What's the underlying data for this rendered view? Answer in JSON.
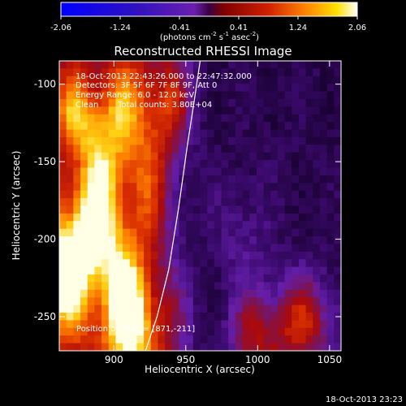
{
  "chart_data": {
    "type": "heatmap",
    "title": "Reconstructed RHESSI Image",
    "xlabel": "Heliocentric X (arcsec)",
    "ylabel": "Heliocentric Y (arcsec)",
    "xlim": [
      862,
      1058
    ],
    "ylim": [
      -272,
      -85
    ],
    "xticks": [
      900,
      950,
      1000,
      1050
    ],
    "yticks": [
      -100,
      -150,
      -200,
      -250
    ],
    "colorbar": {
      "min": -2.06,
      "max": 2.06,
      "ticks": [
        "-2.06",
        "-1.24",
        "-0.41",
        "0.41",
        "1.24",
        "2.06"
      ],
      "unit_main": "(photons cm",
      "unit_e1": "-2",
      "unit_s": " s",
      "unit_e2": "-1",
      "unit_asec": " asec",
      "unit_e3": "-2",
      "unit_close": ")"
    },
    "annotations": {
      "time": "18-Oct-2013 22:43:26.000 to 22:47:32.000",
      "detectors": "Detectors: 3F 5F 6F 7F 8F 9F, Att 0",
      "energy": "Energy Range: 6.0 - 12.0 keV",
      "method": "Clean",
      "counts": "Total counts: 3.80E+04",
      "position": "Position of Peak = [871,-211]"
    },
    "peak": {
      "x": 871,
      "y": -211
    },
    "limb": [
      [
        922,
        -272
      ],
      [
        930,
        -250
      ],
      [
        938,
        -220
      ],
      [
        945,
        -180
      ],
      [
        951,
        -140
      ],
      [
        956,
        -110
      ],
      [
        960,
        -85
      ]
    ],
    "image": {
      "nx": 40,
      "ny": 38,
      "model": "emission bright on the left (solar disk) with peak near [871,-211], hot streaks extending upward, faint purple background on the right with reddish blobs in the lower right"
    }
  },
  "footer": {
    "timestamp": "18-Oct-2013 23:23"
  }
}
